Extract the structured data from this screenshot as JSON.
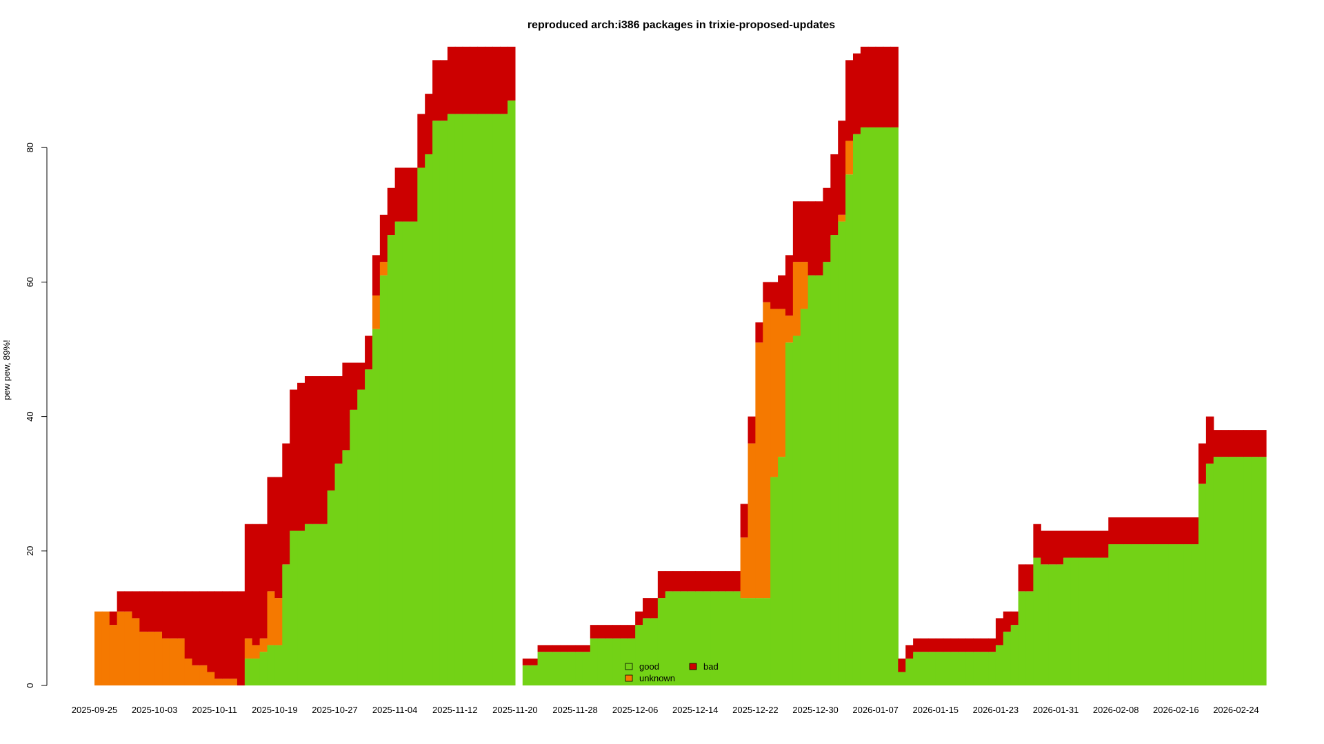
{
  "chart_data": {
    "type": "area",
    "title": "reproduced arch:i386 packages in trixie-proposed-updates",
    "xlabel": "",
    "ylabel": "pew pew, 89%!",
    "ylim": [
      0,
      95
    ],
    "xlim": [
      "2025-09-25",
      "2026-02-28"
    ],
    "y_ticks": [
      0,
      20,
      40,
      60,
      80
    ],
    "x_tick_labels": [
      "2025-09-25",
      "2025-10-03",
      "2025-10-11",
      "2025-10-19",
      "2025-10-27",
      "2025-11-04",
      "2025-11-12",
      "2025-11-20",
      "2025-11-28",
      "2025-12-06",
      "2025-12-14",
      "2025-12-22",
      "2025-12-30",
      "2026-01-07",
      "2026-01-15",
      "2026-01-23",
      "2026-01-31",
      "2026-02-08",
      "2026-02-16",
      "2026-02-24"
    ],
    "grid": false,
    "legend": {
      "position": "bottom-center",
      "entries": [
        {
          "name": "good",
          "color": "#73d216"
        },
        {
          "name": "bad",
          "color": "#cc0000"
        },
        {
          "name": "unknown",
          "color": "#f57900"
        }
      ]
    },
    "colors": {
      "good": "#73d216",
      "unknown": "#f57900",
      "bad": "#cc0000"
    },
    "series_order": [
      "good",
      "unknown",
      "bad"
    ],
    "days": [
      {
        "date": "2025-09-25",
        "good": 0,
        "unknown": 11,
        "bad": 0
      },
      {
        "date": "2025-09-26",
        "good": 0,
        "unknown": 11,
        "bad": 0
      },
      {
        "date": "2025-09-27",
        "good": 0,
        "unknown": 9,
        "bad": 2
      },
      {
        "date": "2025-09-28",
        "good": 0,
        "unknown": 11,
        "bad": 3
      },
      {
        "date": "2025-09-29",
        "good": 0,
        "unknown": 11,
        "bad": 3
      },
      {
        "date": "2025-09-30",
        "good": 0,
        "unknown": 10,
        "bad": 4
      },
      {
        "date": "2025-10-01",
        "good": 0,
        "unknown": 8,
        "bad": 6
      },
      {
        "date": "2025-10-02",
        "good": 0,
        "unknown": 8,
        "bad": 6
      },
      {
        "date": "2025-10-03",
        "good": 0,
        "unknown": 8,
        "bad": 6
      },
      {
        "date": "2025-10-04",
        "good": 0,
        "unknown": 7,
        "bad": 7
      },
      {
        "date": "2025-10-05",
        "good": 0,
        "unknown": 7,
        "bad": 7
      },
      {
        "date": "2025-10-06",
        "good": 0,
        "unknown": 7,
        "bad": 7
      },
      {
        "date": "2025-10-07",
        "good": 0,
        "unknown": 4,
        "bad": 10
      },
      {
        "date": "2025-10-08",
        "good": 0,
        "unknown": 3,
        "bad": 11
      },
      {
        "date": "2025-10-09",
        "good": 0,
        "unknown": 3,
        "bad": 11
      },
      {
        "date": "2025-10-10",
        "good": 0,
        "unknown": 2,
        "bad": 12
      },
      {
        "date": "2025-10-11",
        "good": 0,
        "unknown": 1,
        "bad": 13
      },
      {
        "date": "2025-10-12",
        "good": 0,
        "unknown": 1,
        "bad": 13
      },
      {
        "date": "2025-10-13",
        "good": 0,
        "unknown": 1,
        "bad": 13
      },
      {
        "date": "2025-10-14",
        "good": 0,
        "unknown": 0,
        "bad": 14
      },
      {
        "date": "2025-10-15",
        "good": 4,
        "unknown": 3,
        "bad": 17
      },
      {
        "date": "2025-10-16",
        "good": 4,
        "unknown": 2,
        "bad": 18
      },
      {
        "date": "2025-10-17",
        "good": 5,
        "unknown": 2,
        "bad": 17
      },
      {
        "date": "2025-10-18",
        "good": 6,
        "unknown": 8,
        "bad": 17
      },
      {
        "date": "2025-10-19",
        "good": 6,
        "unknown": 7,
        "bad": 18
      },
      {
        "date": "2025-10-20",
        "good": 18,
        "unknown": 0,
        "bad": 18
      },
      {
        "date": "2025-10-21",
        "good": 23,
        "unknown": 0,
        "bad": 21
      },
      {
        "date": "2025-10-22",
        "good": 23,
        "unknown": 0,
        "bad": 22
      },
      {
        "date": "2025-10-23",
        "good": 24,
        "unknown": 0,
        "bad": 22
      },
      {
        "date": "2025-10-24",
        "good": 24,
        "unknown": 0,
        "bad": 22
      },
      {
        "date": "2025-10-25",
        "good": 24,
        "unknown": 0,
        "bad": 22
      },
      {
        "date": "2025-10-26",
        "good": 29,
        "unknown": 0,
        "bad": 17
      },
      {
        "date": "2025-10-27",
        "good": 33,
        "unknown": 0,
        "bad": 13
      },
      {
        "date": "2025-10-28",
        "good": 35,
        "unknown": 0,
        "bad": 13
      },
      {
        "date": "2025-10-29",
        "good": 41,
        "unknown": 0,
        "bad": 7
      },
      {
        "date": "2025-10-30",
        "good": 44,
        "unknown": 0,
        "bad": 4
      },
      {
        "date": "2025-10-31",
        "good": 47,
        "unknown": 0,
        "bad": 5
      },
      {
        "date": "2025-11-01",
        "good": 53,
        "unknown": 5,
        "bad": 6
      },
      {
        "date": "2025-11-02",
        "good": 61,
        "unknown": 2,
        "bad": 7
      },
      {
        "date": "2025-11-03",
        "good": 67,
        "unknown": 0,
        "bad": 7
      },
      {
        "date": "2025-11-04",
        "good": 69,
        "unknown": 0,
        "bad": 8
      },
      {
        "date": "2025-11-05",
        "good": 69,
        "unknown": 0,
        "bad": 8
      },
      {
        "date": "2025-11-06",
        "good": 69,
        "unknown": 0,
        "bad": 8
      },
      {
        "date": "2025-11-07",
        "good": 77,
        "unknown": 0,
        "bad": 8
      },
      {
        "date": "2025-11-08",
        "good": 79,
        "unknown": 0,
        "bad": 9
      },
      {
        "date": "2025-11-09",
        "good": 84,
        "unknown": 0,
        "bad": 9
      },
      {
        "date": "2025-11-10",
        "good": 84,
        "unknown": 0,
        "bad": 9
      },
      {
        "date": "2025-11-11",
        "good": 85,
        "unknown": 0,
        "bad": 10
      },
      {
        "date": "2025-11-12",
        "good": 85,
        "unknown": 0,
        "bad": 10
      },
      {
        "date": "2025-11-13",
        "good": 85,
        "unknown": 0,
        "bad": 10
      },
      {
        "date": "2025-11-14",
        "good": 85,
        "unknown": 0,
        "bad": 10
      },
      {
        "date": "2025-11-15",
        "good": 85,
        "unknown": 0,
        "bad": 10
      },
      {
        "date": "2025-11-16",
        "good": 85,
        "unknown": 0,
        "bad": 10
      },
      {
        "date": "2025-11-17",
        "good": 85,
        "unknown": 0,
        "bad": 10
      },
      {
        "date": "2025-11-18",
        "good": 85,
        "unknown": 0,
        "bad": 10
      },
      {
        "date": "2025-11-19",
        "good": 87,
        "unknown": 0,
        "bad": 8
      },
      {
        "date": "2025-11-20",
        "good": 0,
        "unknown": 0,
        "bad": 0
      },
      {
        "date": "2025-11-21",
        "good": 3,
        "unknown": 0,
        "bad": 1
      },
      {
        "date": "2025-11-22",
        "good": 3,
        "unknown": 0,
        "bad": 1
      },
      {
        "date": "2025-11-23",
        "good": 5,
        "unknown": 0,
        "bad": 1
      },
      {
        "date": "2025-11-24",
        "good": 5,
        "unknown": 0,
        "bad": 1
      },
      {
        "date": "2025-11-25",
        "good": 5,
        "unknown": 0,
        "bad": 1
      },
      {
        "date": "2025-11-26",
        "good": 5,
        "unknown": 0,
        "bad": 1
      },
      {
        "date": "2025-11-27",
        "good": 5,
        "unknown": 0,
        "bad": 1
      },
      {
        "date": "2025-11-28",
        "good": 5,
        "unknown": 0,
        "bad": 1
      },
      {
        "date": "2025-11-29",
        "good": 5,
        "unknown": 0,
        "bad": 1
      },
      {
        "date": "2025-11-30",
        "good": 7,
        "unknown": 0,
        "bad": 2
      },
      {
        "date": "2025-12-01",
        "good": 7,
        "unknown": 0,
        "bad": 2
      },
      {
        "date": "2025-12-02",
        "good": 7,
        "unknown": 0,
        "bad": 2
      },
      {
        "date": "2025-12-03",
        "good": 7,
        "unknown": 0,
        "bad": 2
      },
      {
        "date": "2025-12-04",
        "good": 7,
        "unknown": 0,
        "bad": 2
      },
      {
        "date": "2025-12-05",
        "good": 7,
        "unknown": 0,
        "bad": 2
      },
      {
        "date": "2025-12-06",
        "good": 9,
        "unknown": 0,
        "bad": 2
      },
      {
        "date": "2025-12-07",
        "good": 10,
        "unknown": 0,
        "bad": 3
      },
      {
        "date": "2025-12-08",
        "good": 10,
        "unknown": 0,
        "bad": 3
      },
      {
        "date": "2025-12-09",
        "good": 13,
        "unknown": 0,
        "bad": 4
      },
      {
        "date": "2025-12-10",
        "good": 14,
        "unknown": 0,
        "bad": 3
      },
      {
        "date": "2025-12-11",
        "good": 14,
        "unknown": 0,
        "bad": 3
      },
      {
        "date": "2025-12-12",
        "good": 14,
        "unknown": 0,
        "bad": 3
      },
      {
        "date": "2025-12-13",
        "good": 14,
        "unknown": 0,
        "bad": 3
      },
      {
        "date": "2025-12-14",
        "good": 14,
        "unknown": 0,
        "bad": 3
      },
      {
        "date": "2025-12-15",
        "good": 14,
        "unknown": 0,
        "bad": 3
      },
      {
        "date": "2025-12-16",
        "good": 14,
        "unknown": 0,
        "bad": 3
      },
      {
        "date": "2025-12-17",
        "good": 14,
        "unknown": 0,
        "bad": 3
      },
      {
        "date": "2025-12-18",
        "good": 14,
        "unknown": 0,
        "bad": 3
      },
      {
        "date": "2025-12-19",
        "good": 14,
        "unknown": 0,
        "bad": 3
      },
      {
        "date": "2025-12-20",
        "good": 13,
        "unknown": 9,
        "bad": 5
      },
      {
        "date": "2025-12-21",
        "good": 13,
        "unknown": 23,
        "bad": 4
      },
      {
        "date": "2025-12-22",
        "good": 13,
        "unknown": 38,
        "bad": 3
      },
      {
        "date": "2025-12-23",
        "good": 13,
        "unknown": 44,
        "bad": 3
      },
      {
        "date": "2025-12-24",
        "good": 31,
        "unknown": 25,
        "bad": 4
      },
      {
        "date": "2025-12-25",
        "good": 34,
        "unknown": 22,
        "bad": 5
      },
      {
        "date": "2025-12-26",
        "good": 51,
        "unknown": 4,
        "bad": 9
      },
      {
        "date": "2025-12-27",
        "good": 52,
        "unknown": 11,
        "bad": 9
      },
      {
        "date": "2025-12-28",
        "good": 56,
        "unknown": 7,
        "bad": 9
      },
      {
        "date": "2025-12-29",
        "good": 61,
        "unknown": 0,
        "bad": 11
      },
      {
        "date": "2025-12-30",
        "good": 61,
        "unknown": 0,
        "bad": 11
      },
      {
        "date": "2025-12-31",
        "good": 63,
        "unknown": 0,
        "bad": 11
      },
      {
        "date": "2026-01-01",
        "good": 67,
        "unknown": 0,
        "bad": 12
      },
      {
        "date": "2026-01-02",
        "good": 69,
        "unknown": 1,
        "bad": 14
      },
      {
        "date": "2026-01-03",
        "good": 76,
        "unknown": 5,
        "bad": 12
      },
      {
        "date": "2026-01-04",
        "good": 82,
        "unknown": 0,
        "bad": 12
      },
      {
        "date": "2026-01-05",
        "good": 83,
        "unknown": 0,
        "bad": 12
      },
      {
        "date": "2026-01-06",
        "good": 83,
        "unknown": 0,
        "bad": 12
      },
      {
        "date": "2026-01-07",
        "good": 83,
        "unknown": 0,
        "bad": 12
      },
      {
        "date": "2026-01-08",
        "good": 83,
        "unknown": 0,
        "bad": 12
      },
      {
        "date": "2026-01-09",
        "good": 83,
        "unknown": 0,
        "bad": 12
      },
      {
        "date": "2026-01-10",
        "good": 2,
        "unknown": 0,
        "bad": 2
      },
      {
        "date": "2026-01-11",
        "good": 4,
        "unknown": 0,
        "bad": 2
      },
      {
        "date": "2026-01-12",
        "good": 5,
        "unknown": 0,
        "bad": 2
      },
      {
        "date": "2026-01-13",
        "good": 5,
        "unknown": 0,
        "bad": 2
      },
      {
        "date": "2026-01-14",
        "good": 5,
        "unknown": 0,
        "bad": 2
      },
      {
        "date": "2026-01-15",
        "good": 5,
        "unknown": 0,
        "bad": 2
      },
      {
        "date": "2026-01-16",
        "good": 5,
        "unknown": 0,
        "bad": 2
      },
      {
        "date": "2026-01-17",
        "good": 5,
        "unknown": 0,
        "bad": 2
      },
      {
        "date": "2026-01-18",
        "good": 5,
        "unknown": 0,
        "bad": 2
      },
      {
        "date": "2026-01-19",
        "good": 5,
        "unknown": 0,
        "bad": 2
      },
      {
        "date": "2026-01-20",
        "good": 5,
        "unknown": 0,
        "bad": 2
      },
      {
        "date": "2026-01-21",
        "good": 5,
        "unknown": 0,
        "bad": 2
      },
      {
        "date": "2026-01-22",
        "good": 5,
        "unknown": 0,
        "bad": 2
      },
      {
        "date": "2026-01-23",
        "good": 6,
        "unknown": 0,
        "bad": 4
      },
      {
        "date": "2026-01-24",
        "good": 8,
        "unknown": 0,
        "bad": 3
      },
      {
        "date": "2026-01-25",
        "good": 9,
        "unknown": 0,
        "bad": 2
      },
      {
        "date": "2026-01-26",
        "good": 14,
        "unknown": 0,
        "bad": 4
      },
      {
        "date": "2026-01-27",
        "good": 14,
        "unknown": 0,
        "bad": 4
      },
      {
        "date": "2026-01-28",
        "good": 19,
        "unknown": 0,
        "bad": 5
      },
      {
        "date": "2026-01-29",
        "good": 18,
        "unknown": 0,
        "bad": 5
      },
      {
        "date": "2026-01-30",
        "good": 18,
        "unknown": 0,
        "bad": 5
      },
      {
        "date": "2026-01-31",
        "good": 18,
        "unknown": 0,
        "bad": 5
      },
      {
        "date": "2026-02-01",
        "good": 19,
        "unknown": 0,
        "bad": 4
      },
      {
        "date": "2026-02-02",
        "good": 19,
        "unknown": 0,
        "bad": 4
      },
      {
        "date": "2026-02-03",
        "good": 19,
        "unknown": 0,
        "bad": 4
      },
      {
        "date": "2026-02-04",
        "good": 19,
        "unknown": 0,
        "bad": 4
      },
      {
        "date": "2026-02-05",
        "good": 19,
        "unknown": 0,
        "bad": 4
      },
      {
        "date": "2026-02-06",
        "good": 19,
        "unknown": 0,
        "bad": 4
      },
      {
        "date": "2026-02-07",
        "good": 21,
        "unknown": 0,
        "bad": 4
      },
      {
        "date": "2026-02-08",
        "good": 21,
        "unknown": 0,
        "bad": 4
      },
      {
        "date": "2026-02-09",
        "good": 21,
        "unknown": 0,
        "bad": 4
      },
      {
        "date": "2026-02-10",
        "good": 21,
        "unknown": 0,
        "bad": 4
      },
      {
        "date": "2026-02-11",
        "good": 21,
        "unknown": 0,
        "bad": 4
      },
      {
        "date": "2026-02-12",
        "good": 21,
        "unknown": 0,
        "bad": 4
      },
      {
        "date": "2026-02-13",
        "good": 21,
        "unknown": 0,
        "bad": 4
      },
      {
        "date": "2026-02-14",
        "good": 21,
        "unknown": 0,
        "bad": 4
      },
      {
        "date": "2026-02-15",
        "good": 21,
        "unknown": 0,
        "bad": 4
      },
      {
        "date": "2026-02-16",
        "good": 21,
        "unknown": 0,
        "bad": 4
      },
      {
        "date": "2026-02-17",
        "good": 21,
        "unknown": 0,
        "bad": 4
      },
      {
        "date": "2026-02-18",
        "good": 21,
        "unknown": 0,
        "bad": 4
      },
      {
        "date": "2026-02-19",
        "good": 30,
        "unknown": 0,
        "bad": 6
      },
      {
        "date": "2026-02-20",
        "good": 33,
        "unknown": 0,
        "bad": 7
      },
      {
        "date": "2026-02-21",
        "good": 34,
        "unknown": 0,
        "bad": 4
      },
      {
        "date": "2026-02-22",
        "good": 34,
        "unknown": 0,
        "bad": 4
      },
      {
        "date": "2026-02-23",
        "good": 34,
        "unknown": 0,
        "bad": 4
      },
      {
        "date": "2026-02-24",
        "good": 34,
        "unknown": 0,
        "bad": 4
      },
      {
        "date": "2026-02-25",
        "good": 34,
        "unknown": 0,
        "bad": 4
      },
      {
        "date": "2026-02-26",
        "good": 34,
        "unknown": 0,
        "bad": 4
      },
      {
        "date": "2026-02-27",
        "good": 34,
        "unknown": 0,
        "bad": 4
      }
    ]
  }
}
